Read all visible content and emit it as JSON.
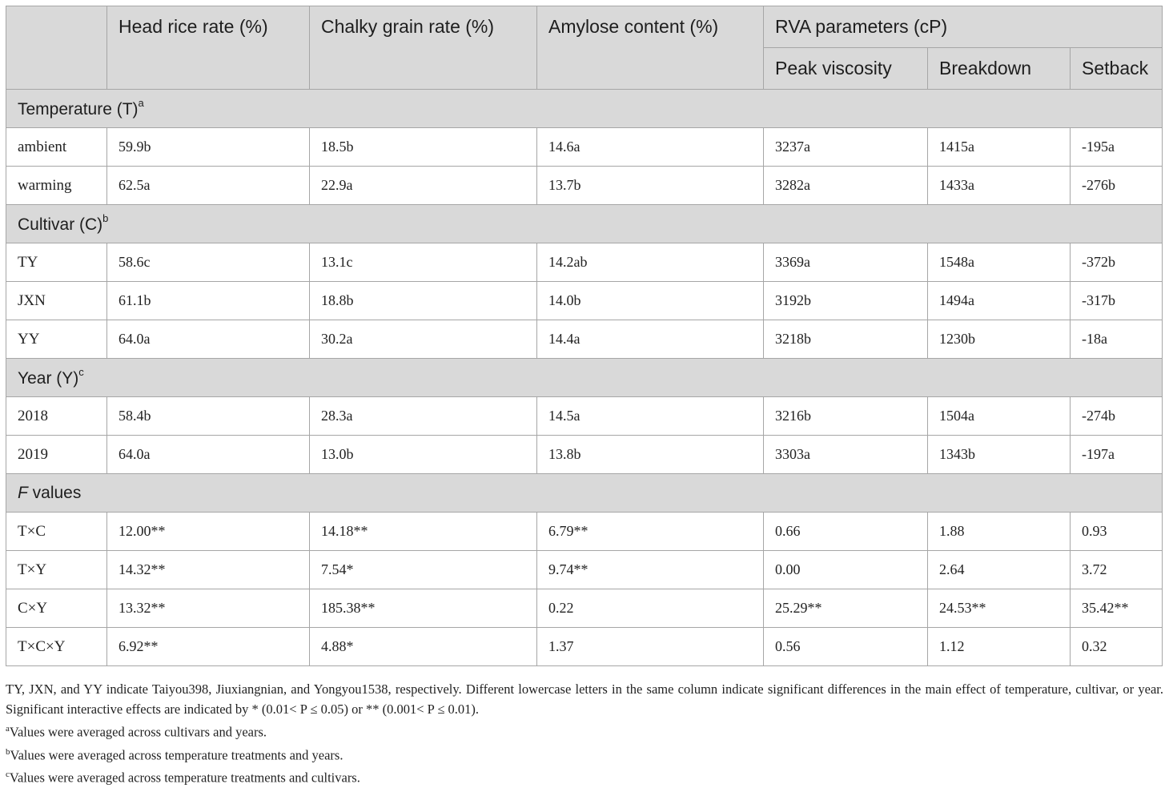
{
  "header": {
    "col1": "Head rice rate (%)",
    "col2": "Chalky grain rate (%)",
    "col3": "Amylose content (%)",
    "rva": "RVA parameters (cP)",
    "peak": "Peak viscosity",
    "breakdown": "Breakdown",
    "setback": "Setback"
  },
  "sections": {
    "temperature": {
      "label": "Temperature (T)",
      "sup": "a"
    },
    "cultivar": {
      "label": "Cultivar (C)",
      "sup": "b"
    },
    "year": {
      "label": "Year (Y)",
      "sup": "c"
    },
    "fvalues": {
      "italic": "F",
      "rest": " values"
    }
  },
  "rows": {
    "ambient": [
      "ambient",
      "59.9b",
      "18.5b",
      "14.6a",
      "3237a",
      "1415a",
      "-195a"
    ],
    "warming": [
      "warming",
      "62.5a",
      "22.9a",
      "13.7b",
      "3282a",
      "1433a",
      "-276b"
    ],
    "ty": [
      "TY",
      "58.6c",
      "13.1c",
      "14.2ab",
      "3369a",
      "1548a",
      "-372b"
    ],
    "jxn": [
      "JXN",
      "61.1b",
      "18.8b",
      "14.0b",
      "3192b",
      "1494a",
      "-317b"
    ],
    "yy": [
      "YY",
      "64.0a",
      "30.2a",
      "14.4a",
      "3218b",
      "1230b",
      "-18a"
    ],
    "y2018": [
      "2018",
      "58.4b",
      "28.3a",
      "14.5a",
      "3216b",
      "1504a",
      "-274b"
    ],
    "y2019": [
      "2019",
      "64.0a",
      "13.0b",
      "13.8b",
      "3303a",
      "1343b",
      "-197a"
    ],
    "txc": [
      "T×C",
      "12.00**",
      "14.18**",
      "6.79**",
      "0.66",
      "1.88",
      "0.93"
    ],
    "txy": [
      "T×Y",
      "14.32**",
      "7.54*",
      "9.74**",
      "0.00",
      "2.64",
      "3.72"
    ],
    "cxy": [
      "C×Y",
      "13.32**",
      "185.38**",
      "0.22",
      "25.29**",
      "24.53**",
      "35.42**"
    ],
    "txcxy": [
      "T×C×Y",
      "6.92**",
      "4.88*",
      "1.37",
      "0.56",
      "1.12",
      "0.32"
    ]
  },
  "notes": {
    "main": "TY, JXN, and YY indicate Taiyou398, Jiuxiangnian, and Yongyou1538, respectively. Different lowercase letters in the same column indicate significant differences in the main effect of temperature, cultivar, or year. Significant interactive effects are indicated by * (0.01< P ≤ 0.05) or ** (0.001< P ≤ 0.01).",
    "a_sup": "a",
    "a": "Values were averaged across cultivars and years.",
    "b_sup": "b",
    "b": "Values were averaged across temperature treatments and years.",
    "c_sup": "c",
    "c": "Values were averaged across temperature treatments and cultivars."
  }
}
